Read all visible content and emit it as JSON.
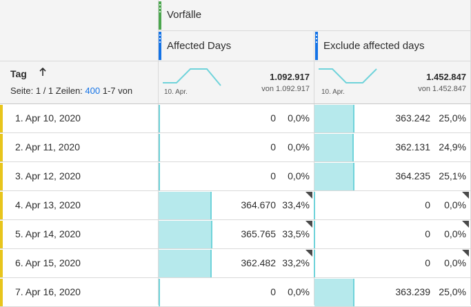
{
  "header": {
    "group_label": "Vorfälle",
    "metric1_title": "Affected Days",
    "metric2_title": "Exclude affected days",
    "dimension_title": "Tag",
    "sort_icon": "arrow-up-icon",
    "pager": {
      "page_text": "Seite: 1 / 1 Zeilen:",
      "rows_value": "400",
      "range_text": "1-7 von"
    },
    "metric1_total": "1.092.917",
    "metric1_total_of": "von 1.092.917",
    "metric1_spark_label": "10. Apr.",
    "metric2_total": "1.452.847",
    "metric2_total_of": "von 1.452.847",
    "metric2_spark_label": "10. Apr."
  },
  "colors": {
    "group_handle": "#4ba64e",
    "metric_handle": "#1473e6",
    "row_accent": "#e8c51c",
    "bar_fill": "#b6e9ec",
    "sparkline": "#6fd3da"
  },
  "rows": [
    {
      "label": "1. Apr 10, 2020",
      "m1_value": "0",
      "m1_pct": "0,0%",
      "m1_share": 0.0,
      "m2_value": "363.242",
      "m2_pct": "25,0%",
      "m2_share": 0.25
    },
    {
      "label": "2. Apr 11, 2020",
      "m1_value": "0",
      "m1_pct": "0,0%",
      "m1_share": 0.0,
      "m2_value": "362.131",
      "m2_pct": "24,9%",
      "m2_share": 0.249
    },
    {
      "label": "3. Apr 12, 2020",
      "m1_value": "0",
      "m1_pct": "0,0%",
      "m1_share": 0.0,
      "m2_value": "364.235",
      "m2_pct": "25,1%",
      "m2_share": 0.251
    },
    {
      "label": "4. Apr 13, 2020",
      "m1_value": "364.670",
      "m1_pct": "33,4%",
      "m1_share": 0.334,
      "m2_value": "0",
      "m2_pct": "0,0%",
      "m2_share": 0.0
    },
    {
      "label": "5. Apr 14, 2020",
      "m1_value": "365.765",
      "m1_pct": "33,5%",
      "m1_share": 0.335,
      "m2_value": "0",
      "m2_pct": "0,0%",
      "m2_share": 0.0
    },
    {
      "label": "6. Apr 15, 2020",
      "m1_value": "362.482",
      "m1_pct": "33,2%",
      "m1_share": 0.332,
      "m2_value": "0",
      "m2_pct": "0,0%",
      "m2_share": 0.0
    },
    {
      "label": "7. Apr 16, 2020",
      "m1_value": "0",
      "m1_pct": "0,0%",
      "m1_share": 0.0,
      "m2_value": "363.239",
      "m2_pct": "25,0%",
      "m2_share": 0.25
    }
  ]
}
